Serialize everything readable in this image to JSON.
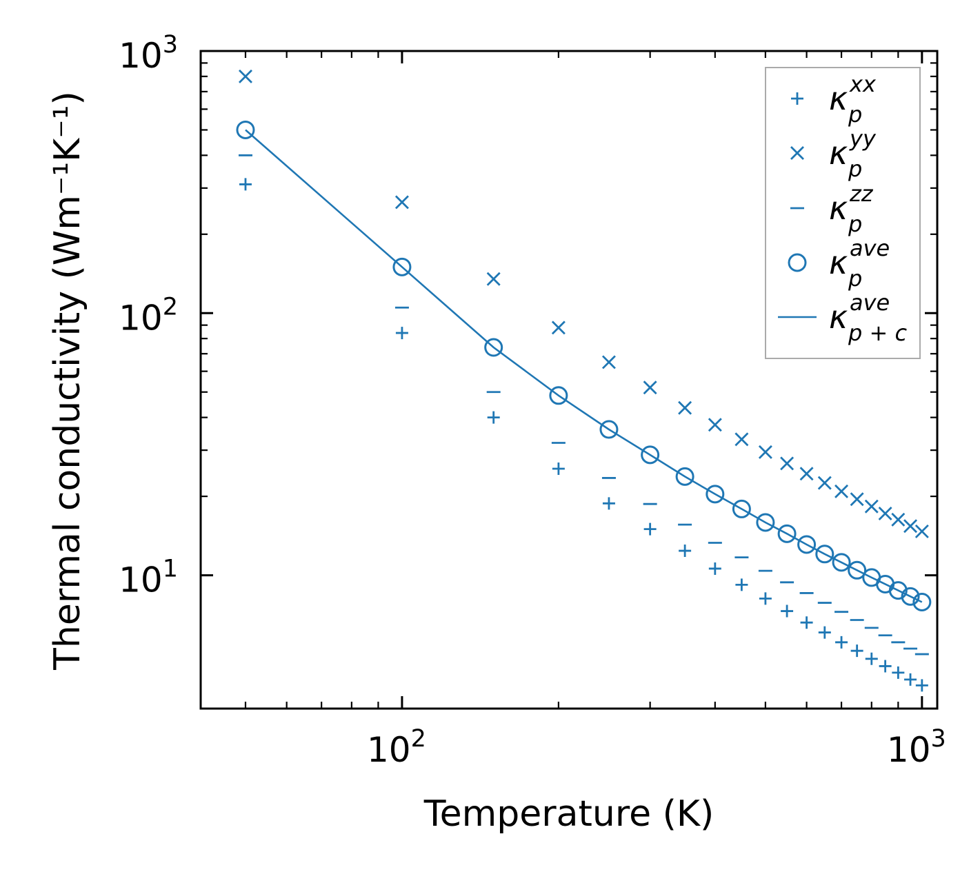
{
  "chart_data": {
    "type": "scatter",
    "x_scale": "log",
    "y_scale": "log",
    "xlabel": "Temperature (K)",
    "ylabel": "Thermal conductivity (Wm⁻¹K⁻¹)",
    "xlim": [
      41,
      1070
    ],
    "ylim": [
      3.1,
      1000
    ],
    "x_ticks": [
      {
        "value": 100,
        "base": "10",
        "exp": "2"
      },
      {
        "value": 1000,
        "base": "10",
        "exp": "3"
      }
    ],
    "y_ticks": [
      {
        "value": 10,
        "base": "10",
        "exp": "1"
      },
      {
        "value": 100,
        "base": "10",
        "exp": "2"
      },
      {
        "value": 1000,
        "base": "10",
        "exp": "3"
      }
    ],
    "color": "#1f77b4",
    "x": [
      50,
      100,
      150,
      200,
      250,
      300,
      350,
      400,
      450,
      500,
      550,
      600,
      650,
      700,
      750,
      800,
      850,
      900,
      950,
      1000
    ],
    "series": [
      {
        "name": "κ_p^xx",
        "legend_main": "κ",
        "legend_sub": "p",
        "legend_sup": "xx",
        "marker": "plus",
        "values": [
          310,
          84,
          40,
          25.5,
          18.8,
          15,
          12.4,
          10.6,
          9.2,
          8.15,
          7.3,
          6.6,
          6.05,
          5.55,
          5.15,
          4.8,
          4.5,
          4.25,
          4.0,
          3.8
        ]
      },
      {
        "name": "κ_p^yy",
        "legend_main": "κ",
        "legend_sub": "p",
        "legend_sup": "yy",
        "marker": "x",
        "values": [
          800,
          265,
          135,
          88,
          65,
          52,
          43.5,
          37.5,
          33,
          29.5,
          26.7,
          24.4,
          22.5,
          20.9,
          19.5,
          18.3,
          17.2,
          16.3,
          15.4,
          14.7
        ]
      },
      {
        "name": "κ_p^zz",
        "legend_main": "κ",
        "legend_sub": "p",
        "legend_sup": "zz",
        "marker": "hline",
        "values": [
          400,
          105,
          50,
          32,
          23.5,
          18.7,
          15.6,
          13.3,
          11.7,
          10.4,
          9.4,
          8.55,
          7.85,
          7.25,
          6.75,
          6.3,
          5.9,
          5.55,
          5.25,
          5.0
        ]
      },
      {
        "name": "κ_p^ave",
        "legend_main": "κ",
        "legend_sub": "p",
        "legend_sup": "ave",
        "marker": "circle",
        "values": [
          500,
          150,
          74,
          48.5,
          36,
          28.8,
          23.8,
          20.4,
          17.9,
          15.9,
          14.4,
          13.1,
          12.05,
          11.2,
          10.45,
          9.8,
          9.25,
          8.75,
          8.3,
          7.9
        ]
      },
      {
        "name": "κ_p+c^ave",
        "legend_main": "κ",
        "legend_sub": "p + c",
        "legend_sup": "ave",
        "marker": "line",
        "values": [
          500,
          150,
          74,
          48.5,
          36,
          28.8,
          23.8,
          20.4,
          17.9,
          15.9,
          14.4,
          13.1,
          12.05,
          11.2,
          10.45,
          9.8,
          9.25,
          8.75,
          8.3,
          7.9
        ]
      }
    ],
    "legend": {
      "position": "top-right"
    }
  }
}
